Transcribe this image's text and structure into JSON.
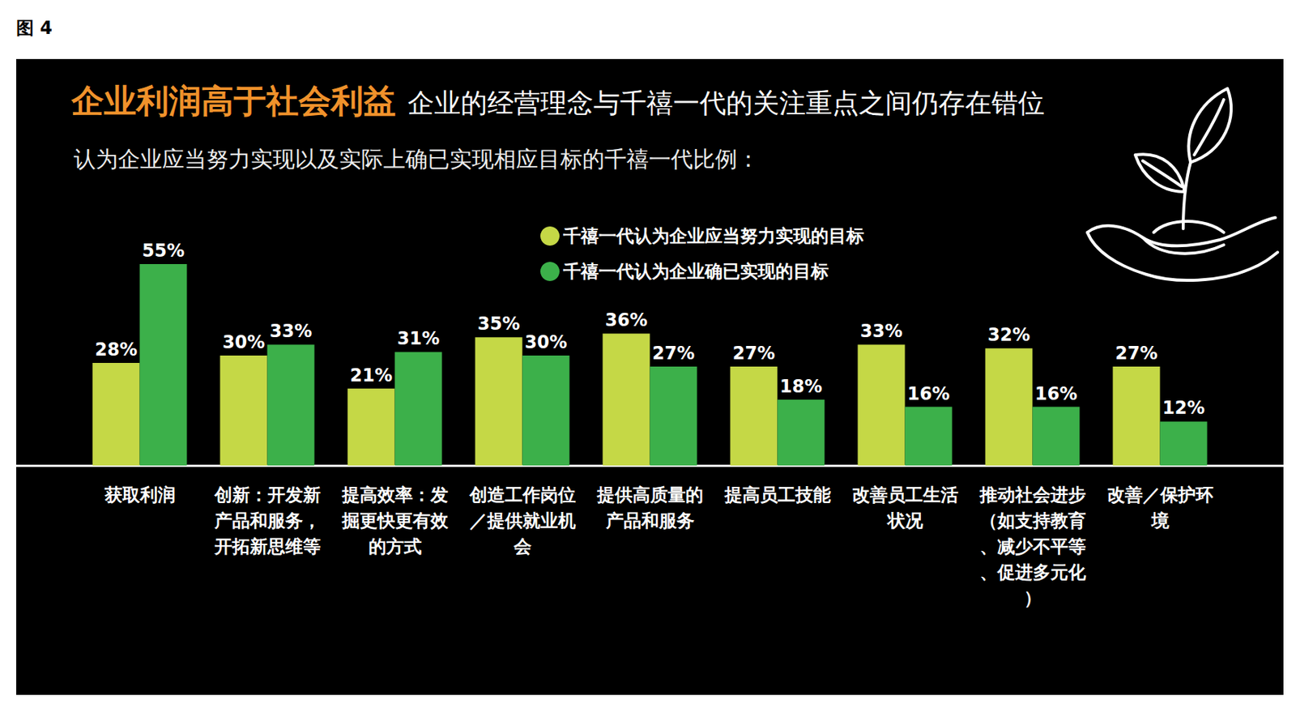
{
  "figure_label": "图 4",
  "chart_data": {
    "type": "bar",
    "title": "企业利润高于社会利益",
    "subtitle": "企业的经营理念与千禧一代的关注重点之间仍存在错位",
    "description": "认为企业应当努力实现以及实际上确已实现相应目标的千禧一代比例：",
    "categories": [
      "获取利润",
      "创新：开发新产品和服务，开拓新思维等",
      "提高效率：发掘更快更有效的方式",
      "创造工作岗位／提供就业机会",
      "提供高质量的产品和服务",
      "提高员工技能",
      "改善员工生活状况",
      "推动社会进步（如支持教育、减少不平等、促进多元化）",
      "改善／保护环境"
    ],
    "series": [
      {
        "name": "千禧一代认为企业应当努力实现的目标",
        "color": "#c5d846",
        "values": [
          28,
          30,
          21,
          35,
          36,
          27,
          33,
          32,
          27
        ],
        "value_labels": [
          "28%",
          "30%",
          "21%",
          "35%",
          "36%",
          "27%",
          "33%",
          "32%",
          "27%"
        ]
      },
      {
        "name": "千禧一代认为企业确已实现的目标",
        "color": "#3cb04a",
        "values": [
          55,
          33,
          31,
          30,
          27,
          18,
          16,
          16,
          12
        ],
        "value_labels": [
          "55%",
          "33%",
          "31%",
          "30%",
          "27%",
          "18%",
          "16%",
          "16%",
          "12%"
        ]
      }
    ],
    "ylim": [
      0,
      55
    ],
    "data_labels": true,
    "tick_labels": "x",
    "legend": "top"
  }
}
